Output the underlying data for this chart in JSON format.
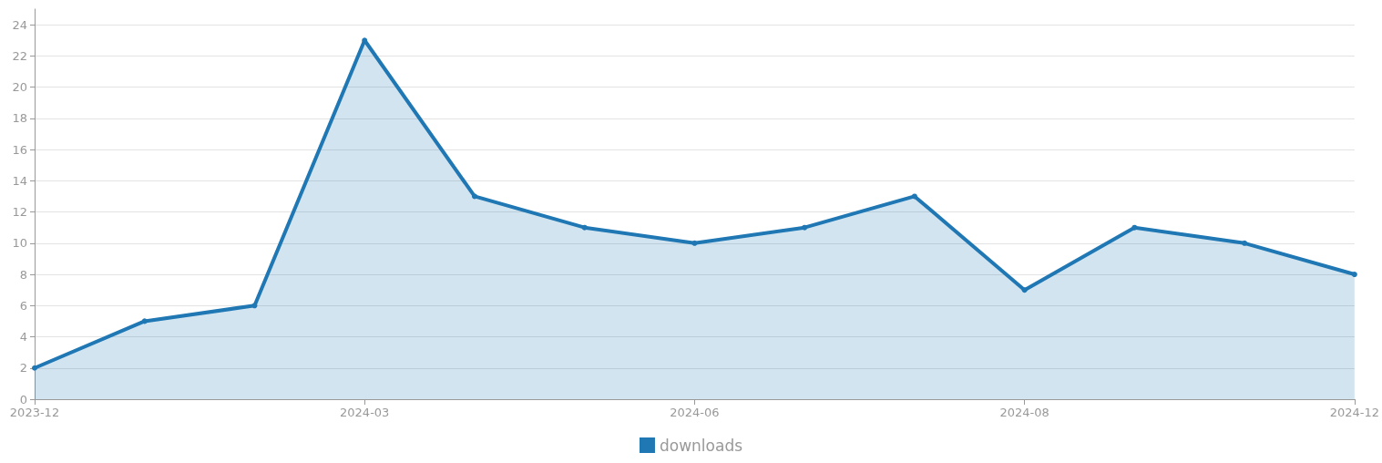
{
  "chart_data": {
    "type": "area",
    "categories": [
      "2023-12",
      null,
      null,
      "2024-03",
      null,
      null,
      "2024-06",
      null,
      null,
      "2024-08",
      null,
      null,
      "2024-12"
    ],
    "series": [
      {
        "name": "downloads",
        "color": "#1f77b4",
        "values": [
          2,
          5,
          6,
          23,
          13,
          11,
          10,
          11,
          13,
          7,
          11,
          10,
          8
        ]
      }
    ],
    "ylim": [
      0,
      25
    ],
    "yticks": [
      0,
      2,
      4,
      6,
      8,
      10,
      12,
      14,
      16,
      18,
      20,
      22,
      24
    ],
    "grid": "y",
    "legend": "bottom",
    "marker": "circle"
  }
}
